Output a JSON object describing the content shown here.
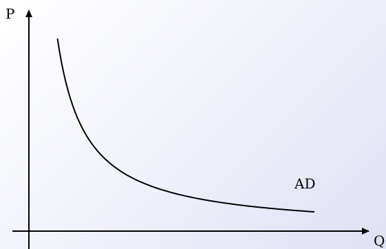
{
  "chart_data": {
    "type": "line",
    "title": "",
    "xlabel": "Q",
    "ylabel": "P",
    "grid": false,
    "axis_ticks": false,
    "series": [
      {
        "name": "AD",
        "shape": "downward-sloping convex curve",
        "x": [
          1.0,
          1.3,
          1.8,
          2.5,
          3.5,
          4.8,
          6.5,
          8.5,
          10.0
        ],
        "y": [
          10.0,
          7.7,
          5.6,
          4.0,
          2.9,
          2.1,
          1.55,
          1.18,
          1.0
        ]
      }
    ],
    "xlim": [
      0,
      12
    ],
    "ylim": [
      0,
      12
    ]
  },
  "colors": {
    "axes": "#000000",
    "curve": "#000000",
    "background_start": "#ffffff",
    "background_end": "#dfe1f4"
  }
}
